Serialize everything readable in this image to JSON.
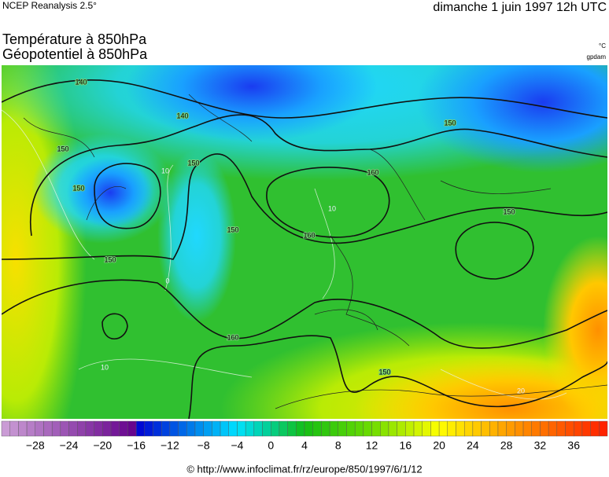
{
  "header": {
    "source": "NCEP Reanalysis 2.5°",
    "date": "dimanche 1 juin 1997 12h UTC"
  },
  "titles": [
    "Température à 850hPa",
    "Géopotentiel à 850hPa"
  ],
  "units": [
    "°C",
    "gpdam"
  ],
  "map": {
    "contour_labels": [
      "140",
      "140",
      "150",
      "150",
      "150",
      "150",
      "150",
      "150",
      "160",
      "160",
      "150",
      "160",
      "150",
      "10",
      "10",
      "0",
      "10",
      "20"
    ]
  },
  "colorbar": {
    "lim": [
      -32,
      40
    ],
    "ticks": [
      {
        "value": -28,
        "label": "−28"
      },
      {
        "value": -24,
        "label": "−24"
      },
      {
        "value": -20,
        "label": "−20"
      },
      {
        "value": -16,
        "label": "−16"
      },
      {
        "value": -12,
        "label": "−12"
      },
      {
        "value": -8,
        "label": "−8"
      },
      {
        "value": -4,
        "label": "−4"
      },
      0,
      4,
      8,
      12,
      16,
      20,
      24,
      28,
      32,
      36
    ]
  },
  "footer": "© http://www.infoclimat.fr/rz/europe/850/1997/6/1/12"
}
